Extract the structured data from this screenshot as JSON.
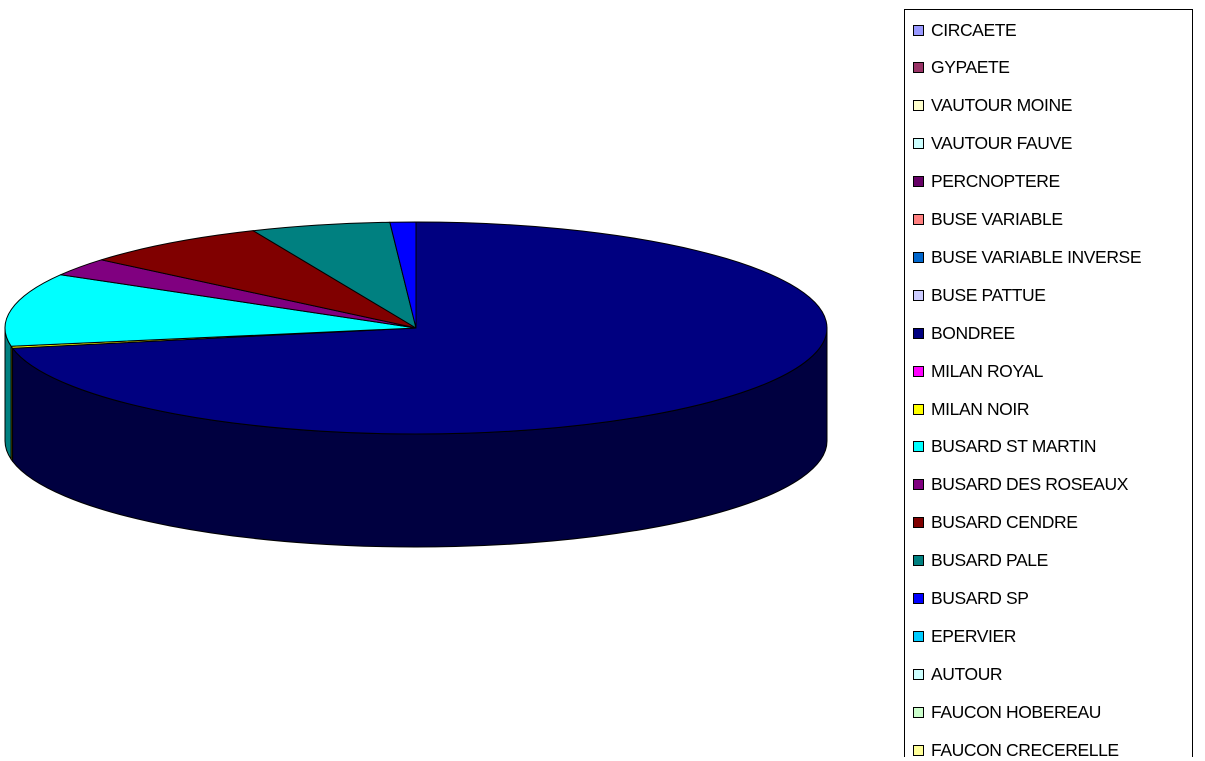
{
  "chart_data": {
    "type": "pie",
    "title": "",
    "three_d": true,
    "legend_position": "right",
    "categories": [
      "CIRCAETE",
      "GYPAETE",
      "VAUTOUR MOINE",
      "VAUTOUR FAUVE",
      "PERCNOPTERE",
      "BUSE VARIABLE",
      "BUSE VARIABLE INVERSE",
      "BUSE PATTUE",
      "BONDREE",
      "MILAN ROYAL",
      "MILAN NOIR",
      "BUSARD ST MARTIN",
      "BUSARD DES ROSEAUX",
      "BUSARD CENDRE",
      "BUSARD PALE",
      "BUSARD SP",
      "EPERVIER",
      "AUTOUR",
      "FAUCON HOBEREAU",
      "FAUCON CRECERELLE"
    ],
    "colors": [
      "#9999FF",
      "#993366",
      "#FFFFCC",
      "#CCFFFF",
      "#660066",
      "#FF8080",
      "#0066CC",
      "#CCCCFF",
      "#000080",
      "#FF00FF",
      "#FFFF00",
      "#00FFFF",
      "#800080",
      "#800000",
      "#008080",
      "#0000FF",
      "#00CCFF",
      "#CCFFFF",
      "#CCFFCC",
      "#FFFF99"
    ],
    "values": [
      0,
      0,
      0,
      0,
      0,
      0,
      0,
      0,
      71.0,
      0,
      0.3,
      11.0,
      2.7,
      7.3,
      5.4,
      1.0,
      0,
      0,
      0,
      0
    ],
    "unit": "percent"
  }
}
